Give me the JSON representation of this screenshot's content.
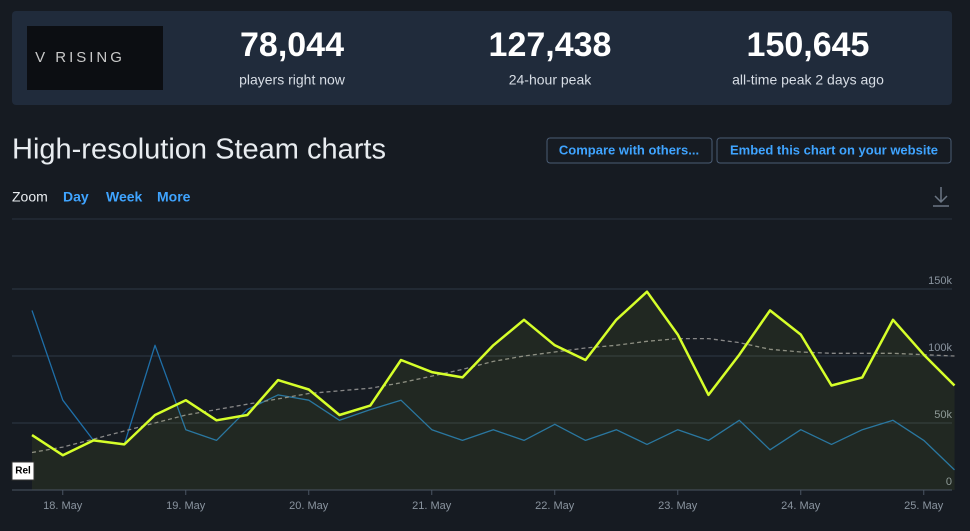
{
  "header": {
    "logo_text": "V RISING",
    "stats": [
      {
        "value": "78,044",
        "label": "players right now"
      },
      {
        "value": "127,438",
        "label": "24-hour peak"
      },
      {
        "value": "150,645",
        "label": "all-time peak 2 days ago"
      }
    ]
  },
  "section_title": "High-resolution Steam charts",
  "buttons": [
    "Compare with others...",
    "Embed this chart on your website"
  ],
  "zoom": {
    "label": "Zoom",
    "options": [
      "Day",
      "Week",
      "More"
    ]
  },
  "chart_data": {
    "type": "line",
    "categories": [
      null,
      "18. May",
      null,
      null,
      null,
      "19. May",
      null,
      null,
      null,
      "20. May",
      null,
      null,
      null,
      "21. May",
      null,
      null,
      null,
      "22. May",
      null,
      null,
      null,
      "23. May",
      null,
      null,
      null,
      "24. May",
      null,
      null,
      null,
      "25. May",
      null
    ],
    "series": [
      {
        "color": "#1f6fa8",
        "values": [
          134000,
          67000,
          37000,
          34000,
          108000,
          45000,
          37000,
          60000,
          71000,
          67000,
          52000,
          60000,
          67000,
          45000,
          37000,
          45000,
          37000,
          49000,
          37000,
          45000,
          34000,
          45000,
          37000,
          52000,
          30000,
          45000,
          34000,
          45000,
          52000,
          37000,
          15000
        ]
      },
      {
        "color": "#888888",
        "dashed": true,
        "values": [
          28000,
          32000,
          38000,
          44000,
          50000,
          56000,
          60000,
          64000,
          68000,
          72000,
          74000,
          76000,
          80000,
          85000,
          90000,
          96000,
          100000,
          103000,
          106000,
          108000,
          111000,
          113000,
          113000,
          110000,
          105000,
          103000,
          102000,
          102000,
          102000,
          101000,
          100000
        ]
      },
      {
        "color": "#d6ff2a",
        "fill": true,
        "values": [
          41000,
          26000,
          37000,
          34000,
          56000,
          67000,
          52000,
          56000,
          82000,
          75000,
          56000,
          63000,
          97000,
          88000,
          84000,
          108000,
          127000,
          108000,
          97000,
          127000,
          148000,
          116000,
          71000,
          101000,
          134000,
          116000,
          78000,
          84000,
          127000,
          101000,
          78000
        ]
      }
    ],
    "ylim": [
      0,
      150000
    ],
    "yticks": [
      0,
      {
        "value": 50000,
        "label": "50k"
      },
      {
        "value": 100000,
        "label": "100k"
      },
      {
        "value": 150000,
        "label": "150k"
      }
    ],
    "grid": true,
    "annotation": "Rel"
  }
}
